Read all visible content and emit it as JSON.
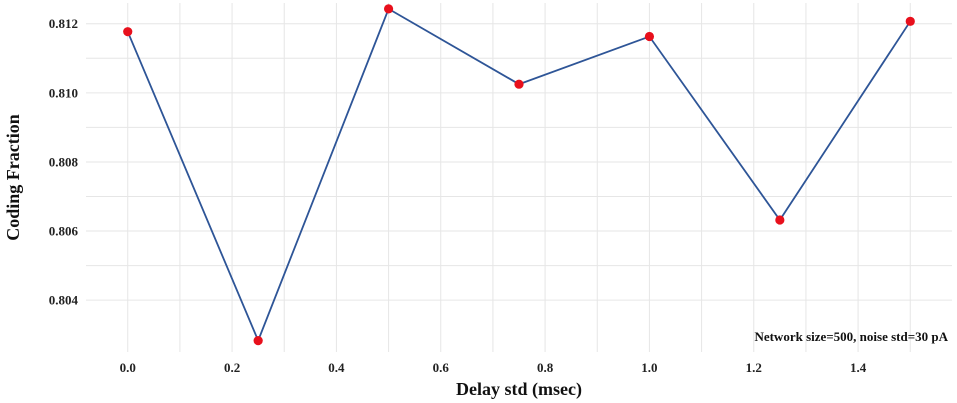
{
  "chart_data": {
    "type": "line",
    "title": "",
    "xlabel": "Delay std (msec)",
    "ylabel": "Coding Fraction",
    "xlim": [
      -0.08,
      1.58
    ],
    "ylim": [
      0.8025,
      0.8126
    ],
    "x_ticks": [
      0.0,
      0.2,
      0.4,
      0.6,
      0.8,
      1.0,
      1.2,
      1.4
    ],
    "x_tick_labels": [
      "0.0",
      "0.2",
      "0.4",
      "0.6",
      "0.8",
      "1.0",
      "1.2",
      "1.4"
    ],
    "y_ticks": [
      0.804,
      0.806,
      0.808,
      0.81,
      0.812
    ],
    "y_tick_labels": [
      "0.804",
      "0.806",
      "0.808",
      "0.810",
      "0.812"
    ],
    "grid": true,
    "series": [
      {
        "x": [
          0.0,
          0.25,
          0.5,
          0.75,
          1.0,
          1.25,
          1.5
        ],
        "values": [
          0.81177,
          0.80283,
          0.81243,
          0.81025,
          0.81163,
          0.80632,
          0.81207
        ],
        "line_color": "#2e5597",
        "marker_color": "#e8101c"
      }
    ],
    "annotation": "Network size=500, noise std=30 pA"
  }
}
